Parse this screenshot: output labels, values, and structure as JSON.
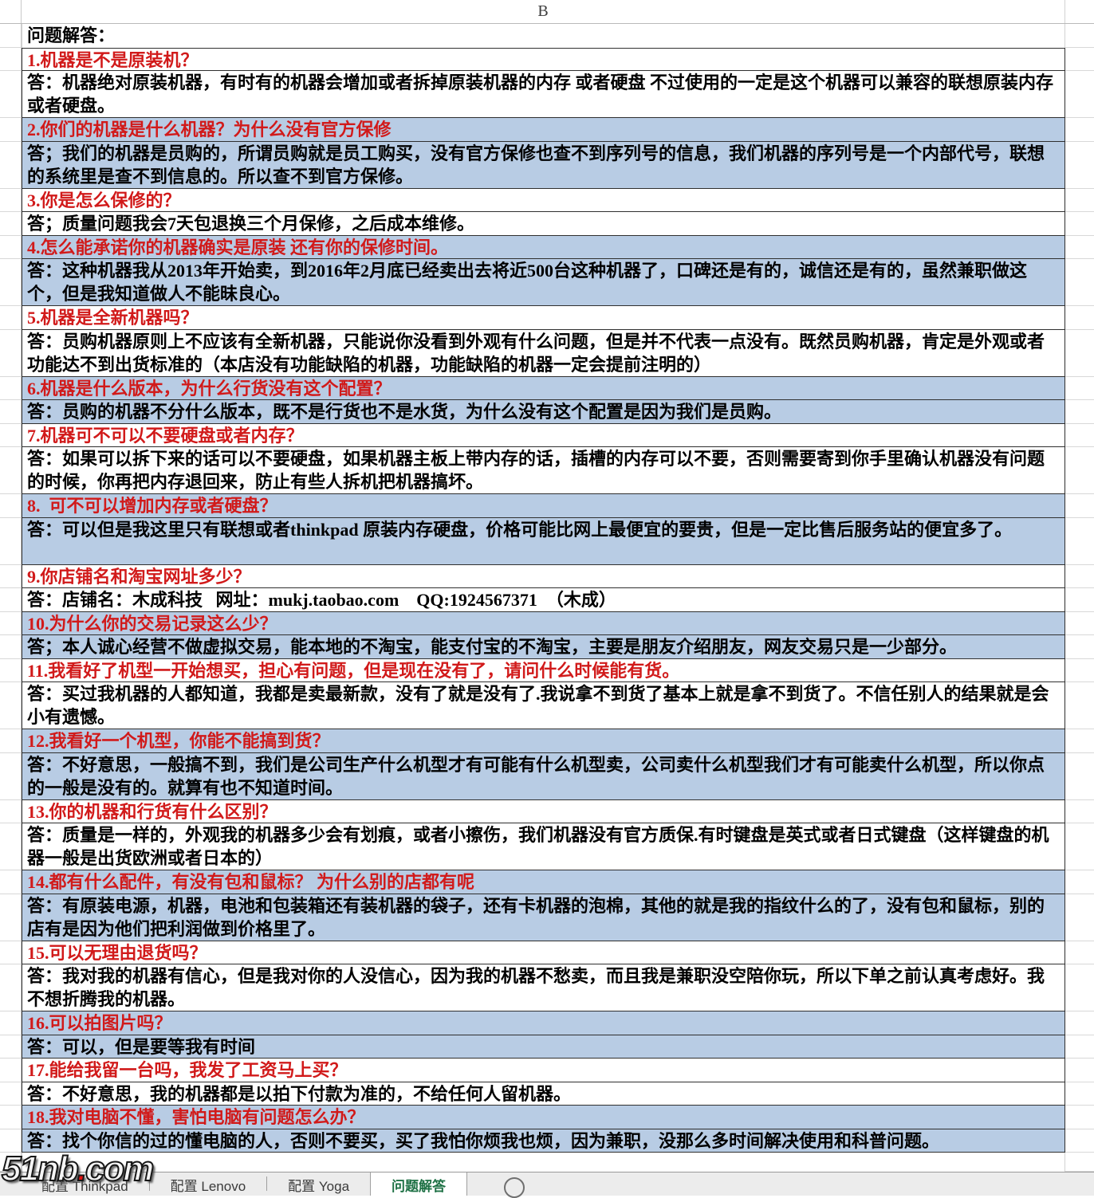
{
  "sheet": {
    "column_label": "B",
    "intro": "问题解答："
  },
  "qa": [
    {
      "num": 1,
      "shade": "white",
      "q_lines": 1,
      "a_lines": 2,
      "question": "1.机器是不是原装机？",
      "answer": "答：机器绝对原装机器，有时有的机器会增加或者拆掉原装机器的内存 或者硬盘 不过使用的一定是这个机器可以兼容的联想原装内存或者硬盘。"
    },
    {
      "num": 2,
      "shade": "blue",
      "q_lines": 1,
      "a_lines": 2,
      "question": "2.你们的机器是什么机器？为什么没有官方保修",
      "answer": "答；我们的机器是员购的，所谓员购就是员工购买，没有官方保修也查不到序列号的信息，我们机器的序列号是一个内部代号，联想的系统里是查不到信息的。所以查不到官方保修。"
    },
    {
      "num": 3,
      "shade": "white",
      "q_lines": 1,
      "a_lines": 1,
      "question": "3.你是怎么保修的？",
      "answer": "答；质量问题我会7天包退换三个月保修，之后成本维修。"
    },
    {
      "num": 4,
      "shade": "blue",
      "q_lines": 1,
      "a_lines": 2,
      "question": "4.怎么能承诺你的机器确实是原装 还有你的保修时间。",
      "answer": "答：这种机器我从2013年开始卖，到2016年2月底已经卖出去将近500台这种机器了，口碑还是有的，诚信还是有的，虽然兼职做这个，但是我知道做人不能昧良心。"
    },
    {
      "num": 5,
      "shade": "white",
      "q_lines": 1,
      "a_lines": 2,
      "question": "5.机器是全新机器吗？",
      "answer": "答：员购机器原则上不应该有全新机器，只能说你没看到外观有什么问题，但是并不代表一点没有。既然员购机器，肯定是外观或者功能达不到出货标准的（本店没有功能缺陷的机器，功能缺陷的机器一定会提前注明的）"
    },
    {
      "num": 6,
      "shade": "blue",
      "q_lines": 1,
      "a_lines": 1,
      "question": "6.机器是什么版本，为什么行货没有这个配置？",
      "answer": "答：员购的机器不分什么版本，既不是行货也不是水货，为什么没有这个配置是因为我们是员购。"
    },
    {
      "num": 7,
      "shade": "white",
      "q_lines": 1,
      "a_lines": 2,
      "question": "7.机器可不可以不要硬盘或者内存？",
      "answer": "答：如果可以拆下来的话可以不要硬盘，如果机器主板上带内存的话，插槽的内存可以不要，否则需要寄到你手里确认机器没有问题的时候，你再把内存退回来，防止有些人拆机把机器搞坏。"
    },
    {
      "num": 8,
      "shade": "blue",
      "q_lines": 1,
      "a_lines": 2,
      "question": "8.  可不可以增加内存或者硬盘？",
      "answer": "答：可以但是我这里只有联想或者thinkpad 原装内存硬盘，价格可能比网上最便宜的要贵，但是一定比售后服务站的便宜多了。"
    },
    {
      "num": 9,
      "shade": "white",
      "q_lines": 1,
      "a_lines": 1,
      "question": "9.你店铺名和淘宝网址多少？",
      "answer": "答：店铺名：木成科技   网址：mukj.taobao.com    QQ:1924567371  （木成）"
    },
    {
      "num": 10,
      "shade": "blue",
      "q_lines": 1,
      "a_lines": 1,
      "question": "10.为什么你的交易记录这么少？",
      "answer": "答；本人诚心经营不做虚拟交易，能本地的不淘宝，能支付宝的不淘宝，主要是朋友介绍朋友，网友交易只是一少部分。"
    },
    {
      "num": 11,
      "shade": "white",
      "q_lines": 1,
      "a_lines": 2,
      "question": "11.我看好了机型一开始想买，担心有问题，但是现在没有了，请问什么时候能有货。",
      "answer": "答：买过我机器的人都知道，我都是卖最新款，没有了就是没有了.我说拿不到货了基本上就是拿不到货了。不信任别人的结果就是会小有遗憾。"
    },
    {
      "num": 12,
      "shade": "blue",
      "q_lines": 1,
      "a_lines": 2,
      "question": "12.我看好一个机型，你能不能搞到货？",
      "answer": "答：不好意思，一般搞不到，我们是公司生产什么机型才有可能有什么机型卖，公司卖什么机型我们才有可能卖什么机型，所以你点的一般是没有的。就算有也不知道时间。"
    },
    {
      "num": 13,
      "shade": "white",
      "q_lines": 1,
      "a_lines": 2,
      "question": "13.你的机器和行货有什么区别？",
      "answer": "答：质量是一样的，外观我的机器多少会有划痕，或者小擦伤，我们机器没有官方质保.有时键盘是英式或者日式键盘（这样键盘的机器一般是出货欧洲或者日本的）"
    },
    {
      "num": 14,
      "shade": "blue",
      "q_lines": 1,
      "a_lines": 2,
      "question": "14.都有什么配件，有没有包和鼠标？ 为什么别的店都有呢",
      "answer": "答：有原装电源，机器，电池和包装箱还有装机器的袋子，还有卡机器的泡棉，其他的就是我的指纹什么的了，没有包和鼠标，别的店有是因为他们把利润做到价格里了。"
    },
    {
      "num": 15,
      "shade": "white",
      "q_lines": 1,
      "a_lines": 2,
      "question": "15.可以无理由退货吗？",
      "answer": "答：我对我的机器有信心，但是我对你的人没信心，因为我的机器不愁卖，而且我是兼职没空陪你玩，所以下单之前认真考虑好。我不想折腾我的机器。"
    },
    {
      "num": 16,
      "shade": "blue",
      "q_lines": 1,
      "a_lines": 1,
      "question": "16.可以拍图片吗？",
      "answer": "答：可以，但是要等我有时间"
    },
    {
      "num": 17,
      "shade": "white",
      "q_lines": 1,
      "a_lines": 1,
      "question": "17.能给我留一台吗，我发了工资马上买？",
      "answer": "答：不好意思，我的机器都是以拍下付款为准的，不给任何人留机器。"
    },
    {
      "num": 18,
      "shade": "blue",
      "q_lines": 1,
      "a_lines": 1,
      "question": "18.我对电脑不懂，害怕电脑有问题怎么办？",
      "answer": "答：找个你信的过的懂电脑的人，否则不要买，买了我怕你烦我也烦，因为兼职，没那么多时间解决使用和科普问题。"
    }
  ],
  "watermark": {
    "prefix": "51nb",
    "dot": ".",
    "suffix": "com"
  },
  "tabs": {
    "items": [
      {
        "label": "配置 Thinkpad",
        "active": false
      },
      {
        "label": "配置 Lenovo",
        "active": false
      },
      {
        "label": "配置 Yoga",
        "active": false
      },
      {
        "label": "问题解答",
        "active": true
      }
    ]
  },
  "colors": {
    "question_red": "#d11a1a",
    "row_blue": "#b8cce4",
    "active_tab_green": "#1e7145",
    "watermark_dot_red": "#e01010"
  }
}
